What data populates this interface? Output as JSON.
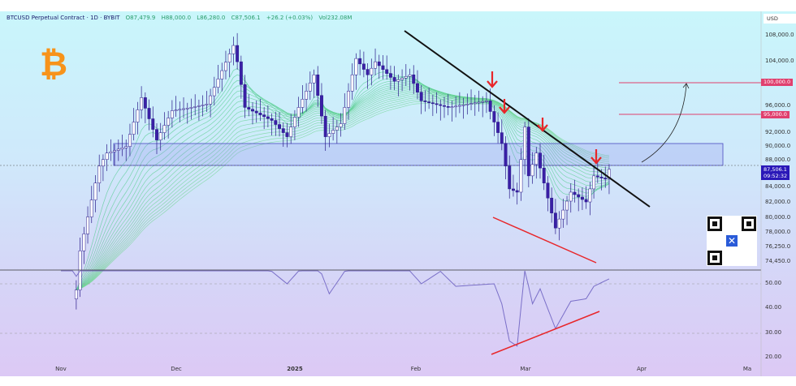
{
  "header": {
    "symbol": "BTCUSD Perpetual Contract · 1D · BYBIT",
    "open": "O87,479.9",
    "high": "H88,000.0",
    "low": "L86,280.0",
    "close": "C87,506.1",
    "change": "+26.2 (+0.03%)",
    "volume": "Vol232.08M"
  },
  "currency": "USD",
  "colors": {
    "bull": "#ffffff",
    "bear": "#3a1fa6",
    "resistance": "#e0406e",
    "trend": "#111111",
    "support": "#e8262a",
    "rsi": "#7a6fc8",
    "price_tag": "#2a18b8"
  },
  "icons": {
    "logo": "bitcoin-logo",
    "qr": "qr-code"
  },
  "price_axis": [
    "108,000.0",
    "104,000.0",
    "96,000.0",
    "92,000.0",
    "90,000.0",
    "88,000.0",
    "84,000.0",
    "82,000.0",
    "80,000.0",
    "78,000.0",
    "76,250.0",
    "74,450.0"
  ],
  "level_tags": [
    "100,000.0",
    "95,000.0"
  ],
  "last_price": {
    "price": "87,506.1",
    "countdown": "09:52:32"
  },
  "rsi_axis": [
    "50.00",
    "40.00",
    "30.00",
    "20.00"
  ],
  "time_axis": [
    "Nov",
    "Dec",
    "2025",
    "Feb",
    "Mar",
    "Apr",
    "Ma"
  ],
  "chart_data": {
    "type": "candlestick",
    "title": "BTCUSD Perpetual Contract · 1D · BYBIT",
    "ylim": [
      73000,
      110000
    ],
    "closes": [
      [
        "2024-11-05",
        69000
      ],
      [
        "2024-11-06",
        75000
      ],
      [
        "2024-11-11",
        88000
      ],
      [
        "2024-11-13",
        90000
      ],
      [
        "2024-11-18",
        91000
      ],
      [
        "2024-11-22",
        98500
      ],
      [
        "2024-11-26",
        92000
      ],
      [
        "2024-11-30",
        96500
      ],
      [
        "2024-12-05",
        97000
      ],
      [
        "2024-12-09",
        97500
      ],
      [
        "2024-12-16",
        106500
      ],
      [
        "2024-12-17",
        104000
      ],
      [
        "2024-12-19",
        97000
      ],
      [
        "2024-12-26",
        95000
      ],
      [
        "2024-12-30",
        92500
      ],
      [
        "2025-01-02",
        97000
      ],
      [
        "2025-01-06",
        102000
      ],
      [
        "2025-01-09",
        92500
      ],
      [
        "2025-01-13",
        94500
      ],
      [
        "2025-01-17",
        104500
      ],
      [
        "2025-01-20",
        102000
      ],
      [
        "2025-01-22",
        104000
      ],
      [
        "2025-01-27",
        101000
      ],
      [
        "2025-01-31",
        102000
      ],
      [
        "2025-02-03",
        98000
      ],
      [
        "2025-02-10",
        97000
      ],
      [
        "2025-02-20",
        98000
      ],
      [
        "2025-02-24",
        91500
      ],
      [
        "2025-02-26",
        84500
      ],
      [
        "2025-02-28",
        84000
      ],
      [
        "2025-03-02",
        94000
      ],
      [
        "2025-03-03",
        86500
      ],
      [
        "2025-03-05",
        90000
      ],
      [
        "2025-03-10",
        78500
      ],
      [
        "2025-03-14",
        84000
      ],
      [
        "2025-03-18",
        82500
      ],
      [
        "2025-03-20",
        86500
      ],
      [
        "2025-03-23",
        86000
      ],
      [
        "2025-03-24",
        87506
      ]
    ],
    "rsi": [
      [
        "2024-11-01",
        62
      ],
      [
        "2024-11-05",
        53
      ],
      [
        "2024-11-10",
        70
      ],
      [
        "2024-12-20",
        62
      ],
      [
        "2024-12-26",
        55
      ],
      [
        "2024-12-30",
        50
      ],
      [
        "2025-01-06",
        62
      ],
      [
        "2025-01-10",
        46
      ],
      [
        "2025-01-18",
        64
      ],
      [
        "2025-01-30",
        57
      ],
      [
        "2025-02-03",
        50
      ],
      [
        "2025-02-08",
        55
      ],
      [
        "2025-02-12",
        49
      ],
      [
        "2025-02-22",
        50
      ],
      [
        "2025-02-24",
        42
      ],
      [
        "2025-02-26",
        27
      ],
      [
        "2025-02-28",
        25
      ],
      [
        "2025-03-02",
        56
      ],
      [
        "2025-03-04",
        42
      ],
      [
        "2025-03-06",
        48
      ],
      [
        "2025-03-10",
        32
      ],
      [
        "2025-03-14",
        43
      ],
      [
        "2025-03-18",
        44
      ],
      [
        "2025-03-20",
        49
      ],
      [
        "2025-03-24",
        52
      ]
    ],
    "rsi_ylim": [
      20,
      55
    ],
    "levels": [
      100000,
      95000
    ],
    "zone": [
      87200,
      90500
    ]
  }
}
